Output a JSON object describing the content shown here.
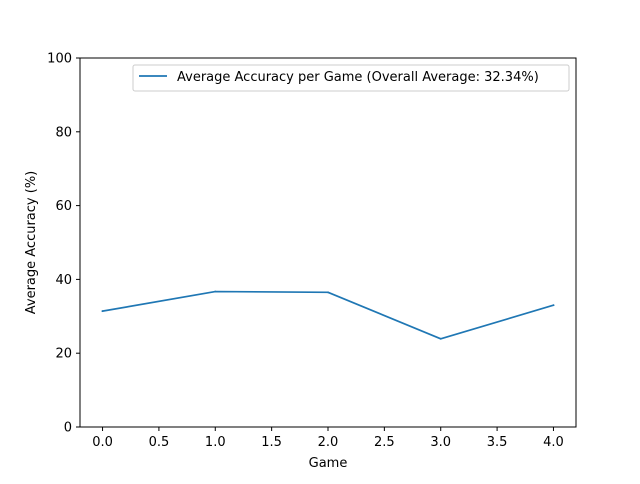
{
  "chart_data": {
    "type": "line",
    "title": "",
    "xlabel": "Game",
    "ylabel": "Average Accuracy (%)",
    "xlim": [
      -0.2,
      4.2
    ],
    "ylim": [
      0,
      100
    ],
    "x_ticks": [
      0.0,
      0.5,
      1.0,
      1.5,
      2.0,
      2.5,
      3.0,
      3.5,
      4.0
    ],
    "x_tick_labels": [
      "0.0",
      "0.5",
      "1.0",
      "1.5",
      "2.0",
      "2.5",
      "3.0",
      "3.5",
      "4.0"
    ],
    "y_ticks": [
      0,
      20,
      40,
      60,
      80,
      100
    ],
    "y_tick_labels": [
      "0",
      "20",
      "40",
      "60",
      "80",
      "100"
    ],
    "grid": false,
    "legend_position": "upper right",
    "series": [
      {
        "name": "Average Accuracy per Game (Overall Average: 32.34%)",
        "color": "#1f77b4",
        "x": [
          0,
          1,
          2,
          3,
          4
        ],
        "y": [
          31.4,
          36.7,
          36.5,
          23.9,
          33.0
        ]
      }
    ]
  }
}
